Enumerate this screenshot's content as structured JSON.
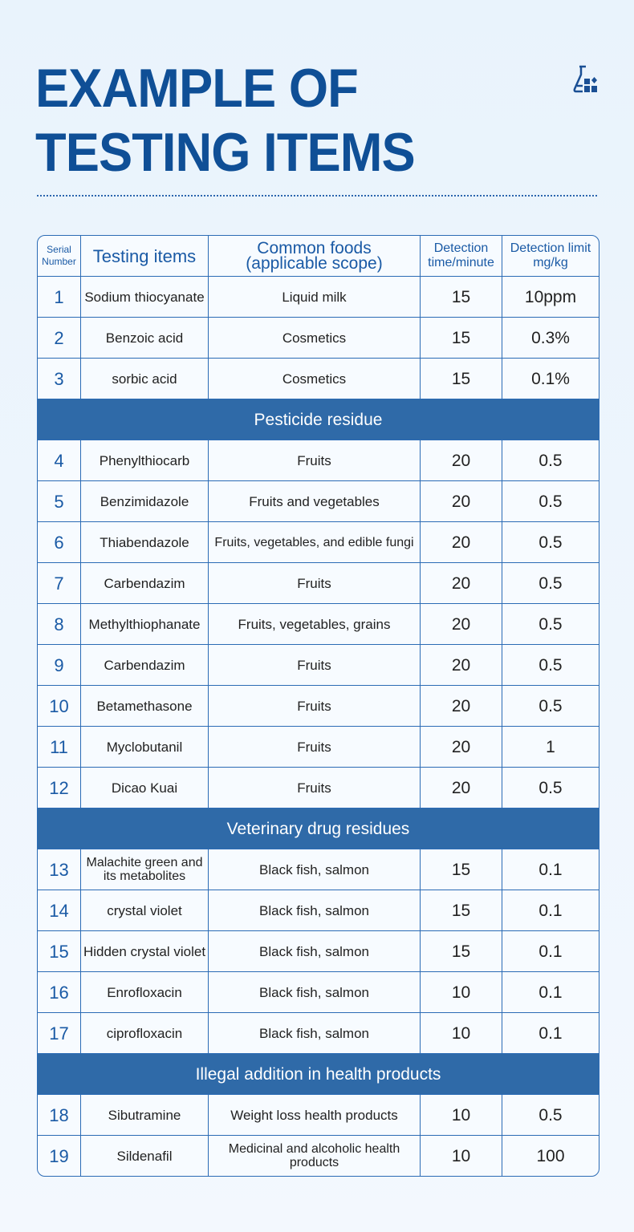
{
  "title": {
    "line1": "EXAMPLE OF",
    "line2": "TESTING ITEMS"
  },
  "icon": "flask-icon",
  "colors": {
    "title": "#0f4f96",
    "section_bg": "#2f6aa8",
    "border": "#2b6bb5"
  },
  "table": {
    "headers": [
      "Serial Number",
      "Testing items",
      "Common foods (applicable scope)",
      "Detection time/minute",
      "Detection limit mg/kg"
    ],
    "header_lines": {
      "serial": [
        "Serial",
        "Number"
      ],
      "foods": [
        "Common foods",
        "(applicable scope)"
      ],
      "time": [
        "Detection",
        "time/minute"
      ],
      "limit": [
        "Detection limit",
        "mg/kg"
      ]
    },
    "groups": [
      {
        "section": "",
        "rows": [
          {
            "n": "1",
            "item": "Sodium thiocyanate",
            "foods": "Liquid milk",
            "time": "15",
            "limit": "10ppm"
          },
          {
            "n": "2",
            "item": "Benzoic acid",
            "foods": "Cosmetics",
            "time": "15",
            "limit": "0.3%"
          },
          {
            "n": "3",
            "item": "sorbic acid",
            "foods": "Cosmetics",
            "time": "15",
            "limit": "0.1%"
          }
        ]
      },
      {
        "section": "Pesticide residue",
        "rows": [
          {
            "n": "4",
            "item": "Phenylthiocarb",
            "foods": "Fruits",
            "time": "20",
            "limit": "0.5"
          },
          {
            "n": "5",
            "item": "Benzimidazole",
            "foods": "Fruits and vegetables",
            "time": "20",
            "limit": "0.5"
          },
          {
            "n": "6",
            "item": "Thiabendazole",
            "foods": "Fruits, vegetables, and edible fungi",
            "time": "20",
            "limit": "0.5"
          },
          {
            "n": "7",
            "item": "Carbendazim",
            "foods": "Fruits",
            "time": "20",
            "limit": "0.5"
          },
          {
            "n": "8",
            "item": "Methylthiophanate",
            "foods": "Fruits, vegetables, grains",
            "time": "20",
            "limit": "0.5"
          },
          {
            "n": "9",
            "item": "Carbendazim",
            "foods": "Fruits",
            "time": "20",
            "limit": "0.5"
          },
          {
            "n": "10",
            "item": "Betamethasone",
            "foods": "Fruits",
            "time": "20",
            "limit": "0.5"
          },
          {
            "n": "11",
            "item": "Myclobutanil",
            "foods": "Fruits",
            "time": "20",
            "limit": "1"
          },
          {
            "n": "12",
            "item": "Dicao Kuai",
            "foods": "Fruits",
            "time": "20",
            "limit": "0.5"
          }
        ]
      },
      {
        "section": "Veterinary drug residues",
        "rows": [
          {
            "n": "13",
            "item": "Malachite green and its metabolites",
            "foods": "Black fish, salmon",
            "time": "15",
            "limit": "0.1"
          },
          {
            "n": "14",
            "item": "crystal violet",
            "foods": "Black fish, salmon",
            "time": "15",
            "limit": "0.1"
          },
          {
            "n": "15",
            "item": "Hidden crystal violet",
            "foods": "Black fish, salmon",
            "time": "15",
            "limit": "0.1"
          },
          {
            "n": "16",
            "item": "Enrofloxacin",
            "foods": "Black fish, salmon",
            "time": "10",
            "limit": "0.1"
          },
          {
            "n": "17",
            "item": "ciprofloxacin",
            "foods": "Black fish, salmon",
            "time": "10",
            "limit": "0.1"
          }
        ]
      },
      {
        "section": "Illegal addition in health products",
        "rows": [
          {
            "n": "18",
            "item": "Sibutramine",
            "foods": "Weight loss health products",
            "time": "10",
            "limit": "0.5"
          },
          {
            "n": "19",
            "item": "Sildenafil",
            "foods": "Medicinal and alcoholic health products",
            "time": "10",
            "limit": "100"
          }
        ]
      }
    ]
  }
}
